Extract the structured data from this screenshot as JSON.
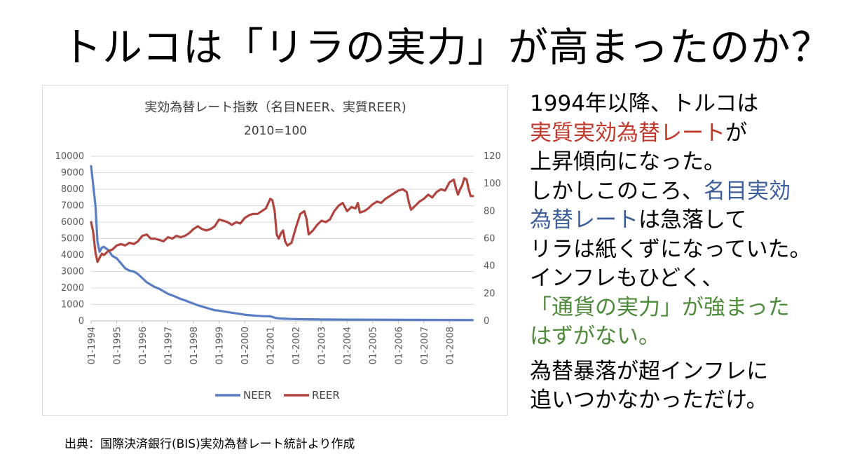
{
  "slide": {
    "title": "トルコは「リラの実力」が高まったのか？",
    "source": "出典：国際決済銀行(BIS)実効為替レート統計より作成",
    "colors": {
      "neer": "#5a7ec4",
      "reer": "#b0453f",
      "red_text": "#c0392b",
      "blue_text": "#3c5f9c",
      "green_text": "#4d8a3a"
    }
  },
  "text": {
    "line1": "1994年以降、トルコは",
    "line2_red": "実質実効為替レート",
    "line2_tail": "が",
    "line3": "上昇傾向になった。",
    "line4a": "しかしこのころ、",
    "line4_blue": "名目実効",
    "line5_blue": "為替レート",
    "line5_tail": "は急落して",
    "line6": "リラは紙くずになっていた。",
    "line7": "インフレもひどく、",
    "line8_green": "「通貨の実力」が強まった",
    "line9_green": "はずがない。",
    "line10": "為替暴落が超インフレに",
    "line11": "追いつかなかっただけ。"
  },
  "chart_data": {
    "type": "line",
    "title": "実効為替レート指数（名目NEER、実質REER)",
    "subtitle": "2010=100",
    "x_categories": [
      "01-1994",
      "01-1995",
      "01-1996",
      "01-1997",
      "01-1998",
      "01-1999",
      "01-2000",
      "01-2001",
      "01-2002",
      "01-2003",
      "01-2004",
      "01-2005",
      "01-2006",
      "01-2007",
      "01-2008"
    ],
    "y_left": {
      "min": 0,
      "max": 10000,
      "ticks": [
        0,
        1000,
        2000,
        3000,
        4000,
        5000,
        6000,
        7000,
        8000,
        9000,
        10000
      ]
    },
    "y_right": {
      "min": 0,
      "max": 120,
      "ticks": [
        0,
        20,
        40,
        60,
        80,
        100,
        120
      ]
    },
    "grid": true,
    "legend_position": "bottom",
    "series": [
      {
        "name": "NEER",
        "axis": "left",
        "points": [
          [
            1994.0,
            9400
          ],
          [
            1994.17,
            7000
          ],
          [
            1994.25,
            4800
          ],
          [
            1994.33,
            4200
          ],
          [
            1994.42,
            4450
          ],
          [
            1994.5,
            4500
          ],
          [
            1994.67,
            4300
          ],
          [
            1994.83,
            3950
          ],
          [
            1995.0,
            3800
          ],
          [
            1995.17,
            3500
          ],
          [
            1995.33,
            3200
          ],
          [
            1995.5,
            3050
          ],
          [
            1995.67,
            3000
          ],
          [
            1995.83,
            2850
          ],
          [
            1996.0,
            2600
          ],
          [
            1996.17,
            2350
          ],
          [
            1996.33,
            2200
          ],
          [
            1996.5,
            2050
          ],
          [
            1996.67,
            1950
          ],
          [
            1996.83,
            1800
          ],
          [
            1997.0,
            1650
          ],
          [
            1997.17,
            1550
          ],
          [
            1997.33,
            1450
          ],
          [
            1997.5,
            1330
          ],
          [
            1997.67,
            1250
          ],
          [
            1997.83,
            1150
          ],
          [
            1998.0,
            1050
          ],
          [
            1998.17,
            950
          ],
          [
            1998.33,
            880
          ],
          [
            1998.5,
            800
          ],
          [
            1998.67,
            720
          ],
          [
            1998.83,
            650
          ],
          [
            1999.0,
            620
          ],
          [
            1999.17,
            580
          ],
          [
            1999.33,
            540
          ],
          [
            1999.5,
            500
          ],
          [
            1999.67,
            460
          ],
          [
            1999.83,
            420
          ],
          [
            2000.0,
            380
          ],
          [
            2000.25,
            340
          ],
          [
            2000.5,
            310
          ],
          [
            2000.75,
            290
          ],
          [
            2001.0,
            280
          ],
          [
            2001.1,
            240
          ],
          [
            2001.2,
            180
          ],
          [
            2001.4,
            150
          ],
          [
            2001.6,
            130
          ],
          [
            2001.8,
            120
          ],
          [
            2002.0,
            110
          ],
          [
            2002.5,
            100
          ],
          [
            2003.0,
            90
          ],
          [
            2004.0,
            80
          ],
          [
            2005.0,
            75
          ],
          [
            2006.0,
            70
          ],
          [
            2007.0,
            65
          ],
          [
            2008.0,
            60
          ],
          [
            2008.9,
            55
          ]
        ]
      },
      {
        "name": "REER",
        "axis": "right",
        "points": [
          [
            1994.0,
            72
          ],
          [
            1994.08,
            65
          ],
          [
            1994.17,
            50
          ],
          [
            1994.25,
            43
          ],
          [
            1994.33,
            46
          ],
          [
            1994.42,
            49
          ],
          [
            1994.5,
            48
          ],
          [
            1994.67,
            51
          ],
          [
            1994.83,
            52
          ],
          [
            1995.0,
            55
          ],
          [
            1995.17,
            56
          ],
          [
            1995.33,
            55
          ],
          [
            1995.5,
            57
          ],
          [
            1995.67,
            56
          ],
          [
            1995.83,
            58
          ],
          [
            1996.0,
            62
          ],
          [
            1996.17,
            63
          ],
          [
            1996.33,
            60
          ],
          [
            1996.5,
            60
          ],
          [
            1996.67,
            59
          ],
          [
            1996.83,
            58
          ],
          [
            1997.0,
            61
          ],
          [
            1997.17,
            60
          ],
          [
            1997.33,
            62
          ],
          [
            1997.5,
            61
          ],
          [
            1997.67,
            62
          ],
          [
            1997.83,
            64
          ],
          [
            1998.0,
            67
          ],
          [
            1998.17,
            69
          ],
          [
            1998.33,
            67
          ],
          [
            1998.5,
            66
          ],
          [
            1998.67,
            67
          ],
          [
            1998.83,
            69
          ],
          [
            1999.0,
            74
          ],
          [
            1999.17,
            73
          ],
          [
            1999.33,
            72
          ],
          [
            1999.5,
            70
          ],
          [
            1999.67,
            72
          ],
          [
            1999.83,
            71
          ],
          [
            2000.0,
            75
          ],
          [
            2000.17,
            77
          ],
          [
            2000.33,
            78
          ],
          [
            2000.5,
            78
          ],
          [
            2000.67,
            80
          ],
          [
            2000.83,
            82
          ],
          [
            2001.0,
            89
          ],
          [
            2001.08,
            88
          ],
          [
            2001.17,
            80
          ],
          [
            2001.25,
            63
          ],
          [
            2001.33,
            60
          ],
          [
            2001.42,
            64
          ],
          [
            2001.5,
            66
          ],
          [
            2001.58,
            58
          ],
          [
            2001.67,
            55
          ],
          [
            2001.83,
            57
          ],
          [
            2002.0,
            68
          ],
          [
            2002.17,
            78
          ],
          [
            2002.33,
            80
          ],
          [
            2002.42,
            74
          ],
          [
            2002.5,
            63
          ],
          [
            2002.67,
            66
          ],
          [
            2002.83,
            70
          ],
          [
            2003.0,
            73
          ],
          [
            2003.17,
            72
          ],
          [
            2003.33,
            74
          ],
          [
            2003.5,
            80
          ],
          [
            2003.67,
            84
          ],
          [
            2003.83,
            86
          ],
          [
            2004.0,
            80
          ],
          [
            2004.17,
            83
          ],
          [
            2004.33,
            82
          ],
          [
            2004.42,
            86
          ],
          [
            2004.5,
            79
          ],
          [
            2004.67,
            80
          ],
          [
            2004.83,
            82
          ],
          [
            2005.0,
            85
          ],
          [
            2005.17,
            87
          ],
          [
            2005.33,
            86
          ],
          [
            2005.5,
            89
          ],
          [
            2005.67,
            91
          ],
          [
            2005.83,
            93
          ],
          [
            2006.0,
            95
          ],
          [
            2006.17,
            96
          ],
          [
            2006.33,
            94
          ],
          [
            2006.42,
            86
          ],
          [
            2006.5,
            81
          ],
          [
            2006.67,
            84
          ],
          [
            2006.83,
            87
          ],
          [
            2007.0,
            89
          ],
          [
            2007.17,
            92
          ],
          [
            2007.33,
            90
          ],
          [
            2007.5,
            94
          ],
          [
            2007.67,
            96
          ],
          [
            2007.83,
            95
          ],
          [
            2008.0,
            101
          ],
          [
            2008.17,
            103
          ],
          [
            2008.25,
            97
          ],
          [
            2008.33,
            92
          ],
          [
            2008.42,
            96
          ],
          [
            2008.5,
            99
          ],
          [
            2008.58,
            104
          ],
          [
            2008.67,
            103
          ],
          [
            2008.75,
            96
          ],
          [
            2008.83,
            91
          ],
          [
            2008.92,
            91
          ]
        ]
      }
    ]
  }
}
